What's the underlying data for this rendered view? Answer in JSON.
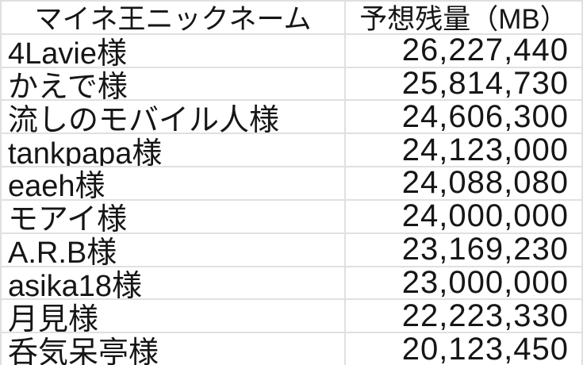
{
  "table": {
    "columns": [
      {
        "label": "マイネ王ニックネーム"
      },
      {
        "label": "予想残量（MB）"
      }
    ],
    "rows": [
      {
        "name": "4Lavie様",
        "value": "26,227,440"
      },
      {
        "name": "かえで様",
        "value": "25,814,730"
      },
      {
        "name": "流しのモバイル人様",
        "value": "24,606,300"
      },
      {
        "name": "tankpapa様",
        "value": "24,123,000"
      },
      {
        "name": "eaeh様",
        "value": "24,088,080"
      },
      {
        "name": "モアイ様",
        "value": "24,000,000"
      },
      {
        "name": "A.R.B様",
        "value": "23,169,230"
      },
      {
        "name": "asika18様",
        "value": "23,000,000"
      },
      {
        "name": "月見様",
        "value": "22,223,330"
      },
      {
        "name": "呑気呆亭様",
        "value": "20,123,450"
      }
    ]
  },
  "chart_data": {
    "type": "table",
    "title": "",
    "columns": [
      "マイネ王ニックネーム",
      "予想残量（MB）"
    ],
    "rows": [
      [
        "4Lavie様",
        26227440
      ],
      [
        "かえで様",
        25814730
      ],
      [
        "流しのモバイル人様",
        24606300
      ],
      [
        "tankpapa様",
        24123000
      ],
      [
        "eaeh様",
        24088080
      ],
      [
        "モアイ様",
        24000000
      ],
      [
        "A.R.B様",
        23169230
      ],
      [
        "asika18様",
        23000000
      ],
      [
        "月見様",
        22223330
      ],
      [
        "呑気呆亭様",
        20123450
      ]
    ],
    "value_unit": "MB",
    "layout": {
      "grid": true,
      "name_align": "left",
      "value_align": "right",
      "header_align": "center"
    }
  },
  "colors": {
    "grid": "#e0e0e0",
    "text": "#161616",
    "background": "#ffffff"
  }
}
